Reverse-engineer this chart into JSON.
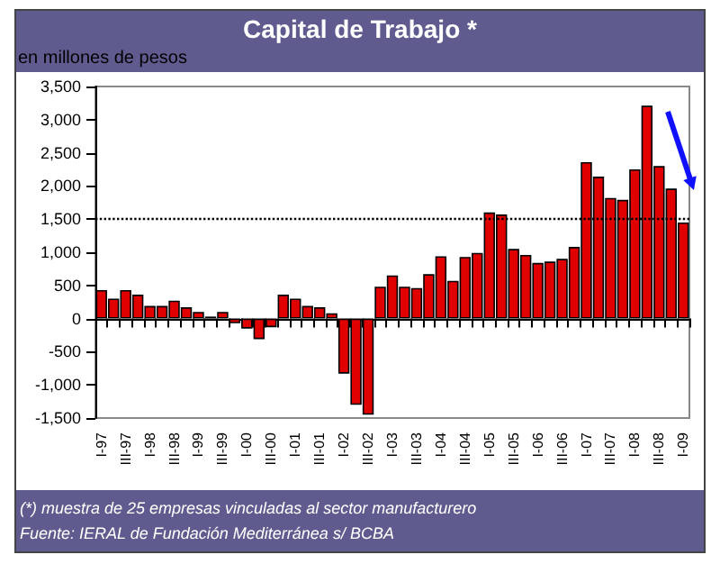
{
  "chart_data": {
    "type": "bar",
    "title": "Capital de Trabajo *",
    "subtitle": "en millones de pesos",
    "categories": [
      "I-97",
      null,
      "III-97",
      null,
      "I-98",
      null,
      "III-98",
      null,
      "I-99",
      null,
      "III-99",
      null,
      "I-00",
      null,
      "III-00",
      null,
      "I-01",
      null,
      "III-01",
      null,
      "I-02",
      null,
      "III-02",
      null,
      "I-03",
      null,
      "III-03",
      null,
      "I-04",
      null,
      "III-04",
      null,
      "I-05",
      null,
      "III-05",
      null,
      "I-06",
      null,
      "III-06",
      null,
      "I-07",
      null,
      "III-07",
      null,
      "I-08",
      null,
      "III-08",
      null,
      "I-09"
    ],
    "values": [
      430,
      300,
      430,
      360,
      190,
      190,
      270,
      170,
      100,
      30,
      100,
      -70,
      -150,
      -310,
      -130,
      360,
      300,
      190,
      170,
      80,
      -830,
      -1300,
      -1450,
      480,
      650,
      480,
      460,
      670,
      940,
      570,
      930,
      990,
      1600,
      1570,
      1050,
      960,
      840,
      860,
      900,
      1080,
      2360,
      2140,
      1820,
      1790,
      2250,
      3210,
      2300,
      1960,
      1450
    ],
    "color": "#e00000",
    "ylim": [
      -1500,
      3500
    ],
    "yticks": [
      {
        "value": -1500,
        "label": "-1,500"
      },
      {
        "value": -1000,
        "label": "-1,000"
      },
      -500,
      0,
      500,
      {
        "value": 1000,
        "label": "1,000"
      },
      {
        "value": 1500,
        "label": "1,500"
      },
      {
        "value": 2000,
        "label": "2,000"
      },
      {
        "value": 2500,
        "label": "2,500"
      },
      {
        "value": 3000,
        "label": "3,000"
      },
      {
        "value": 3500,
        "label": "3,500"
      }
    ],
    "grid": false,
    "ref_lines": [
      {
        "axis": "y",
        "value": 1500,
        "color": "#000000",
        "line_style": "dotted"
      }
    ],
    "annotations": [
      "(*) muestra de 25 empresas vinculadas al sector manufacturero",
      "Fuente: IERAL de Fundación Mediterránea s/ BCBA"
    ]
  }
}
